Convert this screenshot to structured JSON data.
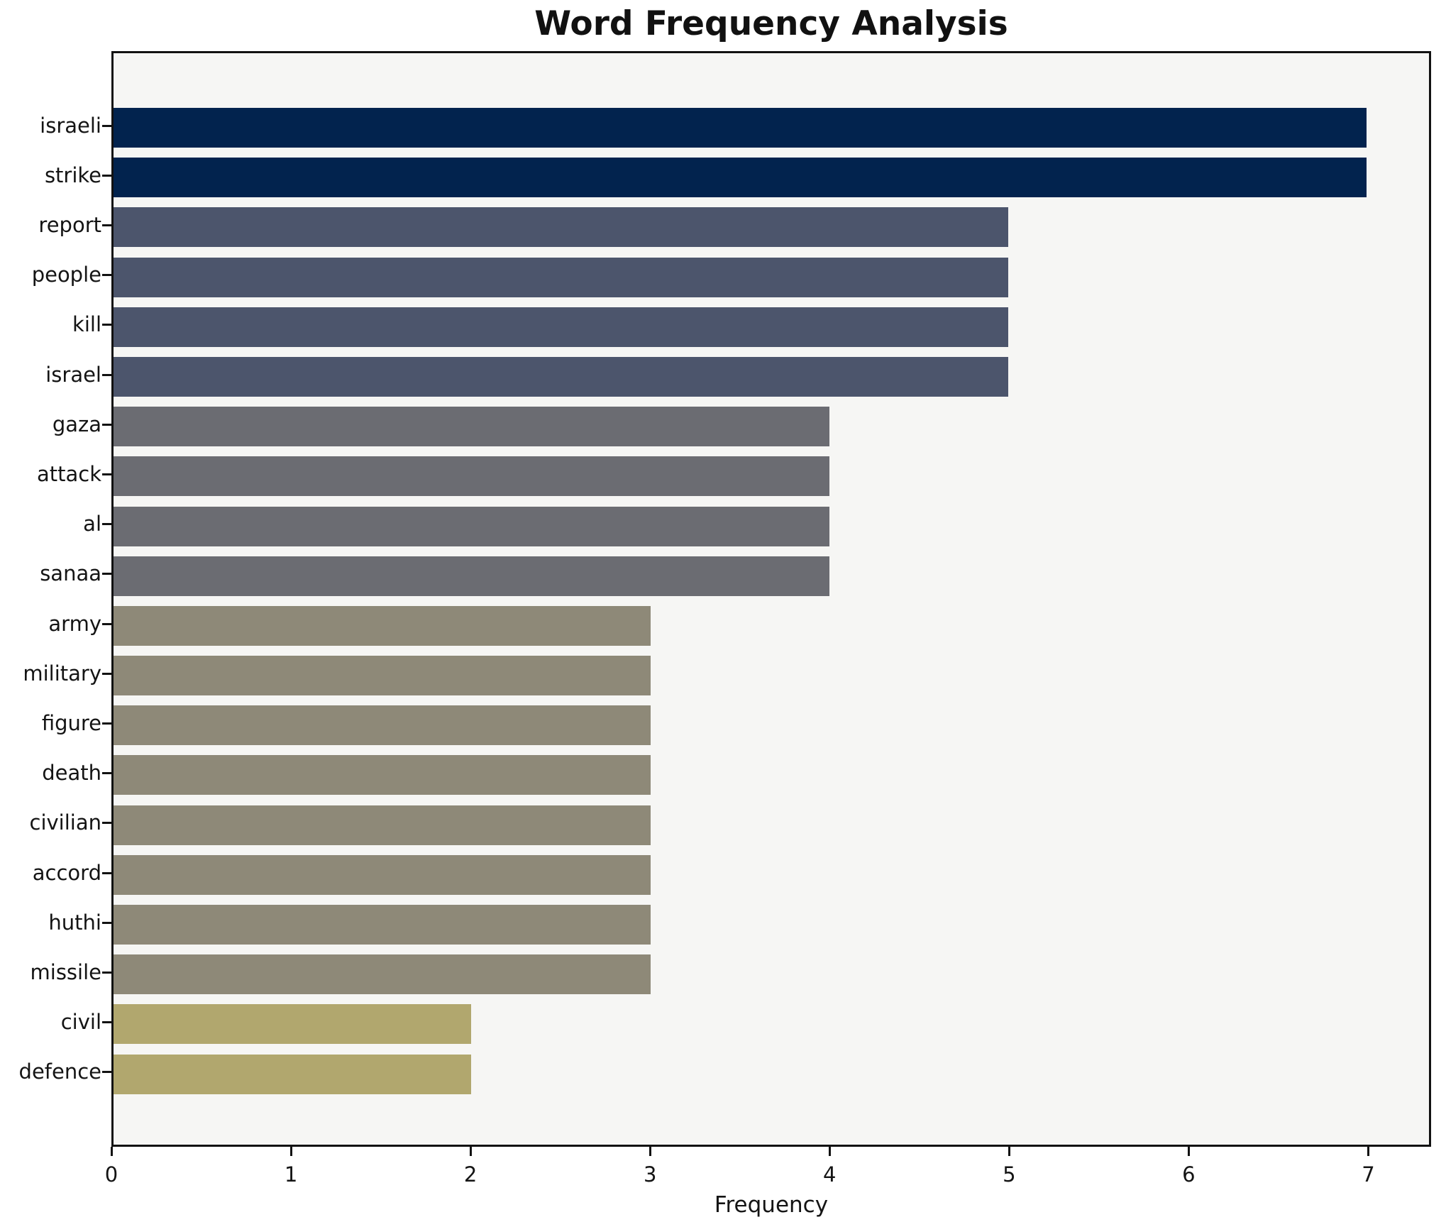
{
  "chart_data": {
    "type": "bar",
    "orientation": "horizontal",
    "title": "Word Frequency Analysis",
    "xlabel": "Frequency",
    "ylabel": "",
    "categories": [
      "israeli",
      "strike",
      "report",
      "people",
      "kill",
      "israel",
      "gaza",
      "attack",
      "al",
      "sanaa",
      "army",
      "military",
      "figure",
      "death",
      "civilian",
      "accord",
      "huthi",
      "missile",
      "civil",
      "defence"
    ],
    "values": [
      7,
      7,
      5,
      5,
      5,
      5,
      4,
      4,
      4,
      4,
      3,
      3,
      3,
      3,
      3,
      3,
      3,
      3,
      2,
      2
    ],
    "bar_colors": [
      "#02234e",
      "#02234e",
      "#4c556c",
      "#4c556c",
      "#4c556c",
      "#4c556c",
      "#6b6c72",
      "#6b6c72",
      "#6b6c72",
      "#6b6c72",
      "#8e8978",
      "#8e8978",
      "#8e8978",
      "#8e8978",
      "#8e8978",
      "#8e8978",
      "#8e8978",
      "#8e8978",
      "#b1a76e",
      "#b1a76e"
    ],
    "xlim": [
      0,
      7.35
    ],
    "xticks": [
      0,
      1,
      2,
      3,
      4,
      5,
      6,
      7
    ],
    "grid": false,
    "legend": "none",
    "plot_background": "#f6f6f4",
    "figure_background": "#ffffff",
    "frame_color": "#121212"
  }
}
